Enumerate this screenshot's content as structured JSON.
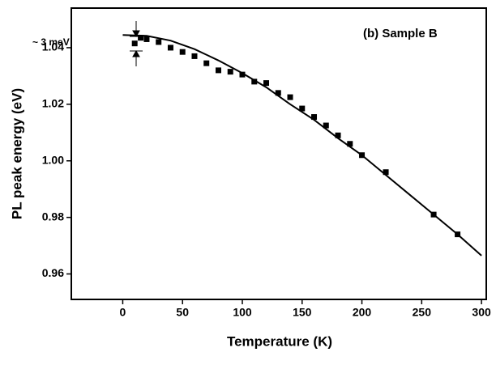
{
  "chart_data": {
    "type": "scatter",
    "xlabel": "Temperature (K)",
    "ylabel": "PL peak energy (eV)",
    "annotations": [
      "~ 3 meV",
      "(b) Sample B"
    ],
    "xlim": [
      -43,
      304
    ],
    "xticks": [
      0,
      50,
      100,
      150,
      200,
      250,
      300
    ],
    "ylim": [
      0.951,
      1.054
    ],
    "yticks": [
      0.96,
      0.98,
      {
        "value": 1.0,
        "label": "1.00"
      },
      1.02,
      1.04
    ],
    "series": [
      {
        "type": "scatter",
        "color": "#000000",
        "x": [
          10,
          15,
          20,
          30,
          40,
          50,
          60,
          70,
          80,
          90,
          100,
          110,
          120,
          130,
          140,
          150,
          160,
          170,
          180,
          190,
          200,
          220,
          260,
          280
        ],
        "values": [
          1.0415,
          1.0435,
          1.043,
          1.042,
          1.04,
          1.0385,
          1.037,
          1.0345,
          1.032,
          1.0315,
          1.0305,
          1.028,
          1.0275,
          1.024,
          1.0225,
          1.0185,
          1.0155,
          1.0125,
          1.009,
          1.006,
          1.002,
          0.996,
          0.981,
          0.974
        ]
      },
      {
        "type": "line",
        "color": "#000000",
        "x": [
          0,
          20,
          40,
          60,
          80,
          100,
          120,
          140,
          160,
          180,
          200,
          220,
          240,
          260,
          280,
          300
        ],
        "values": [
          1.0445,
          1.0442,
          1.0425,
          1.0395,
          1.0355,
          1.031,
          1.026,
          1.02,
          1.0145,
          1.008,
          1.002,
          0.995,
          0.988,
          0.981,
          0.974,
          0.9665
        ]
      }
    ]
  }
}
